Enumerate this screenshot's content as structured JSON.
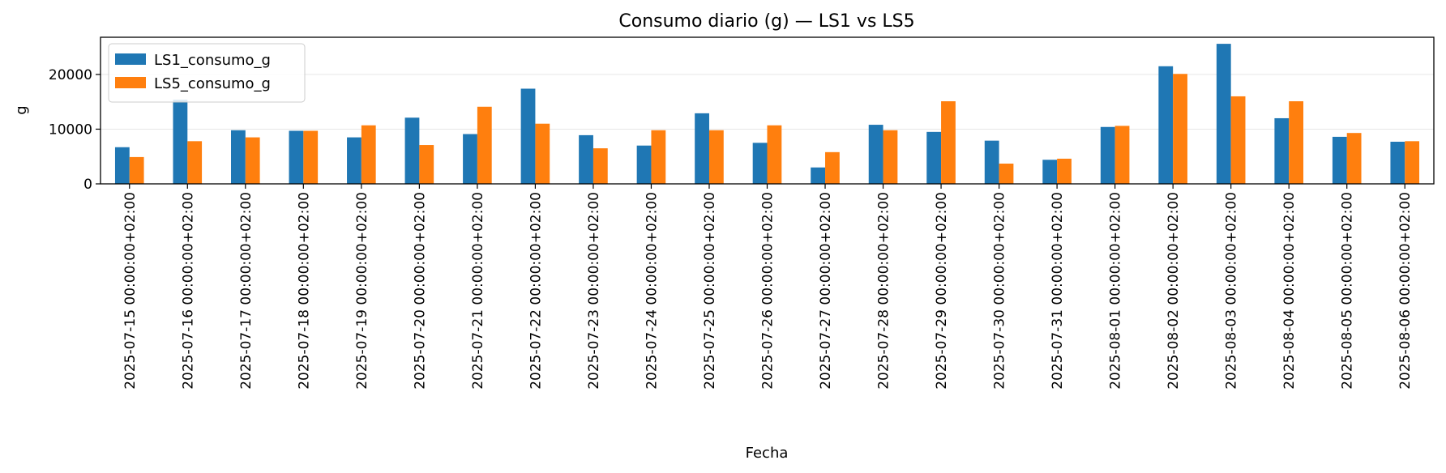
{
  "chart_data": {
    "type": "bar",
    "title": "Consumo diario (g) — LS1 vs LS5",
    "xlabel": "Fecha",
    "ylabel": "g",
    "ylim": [
      0,
      26800
    ],
    "yticks": [
      0,
      10000,
      20000
    ],
    "grid": "y",
    "legend_position": "top-left",
    "categories": [
      "2025-07-15 00:00:00+02:00",
      "2025-07-16 00:00:00+02:00",
      "2025-07-17 00:00:00+02:00",
      "2025-07-18 00:00:00+02:00",
      "2025-07-19 00:00:00+02:00",
      "2025-07-20 00:00:00+02:00",
      "2025-07-21 00:00:00+02:00",
      "2025-07-22 00:00:00+02:00",
      "2025-07-23 00:00:00+02:00",
      "2025-07-24 00:00:00+02:00",
      "2025-07-25 00:00:00+02:00",
      "2025-07-26 00:00:00+02:00",
      "2025-07-27 00:00:00+02:00",
      "2025-07-28 00:00:00+02:00",
      "2025-07-29 00:00:00+02:00",
      "2025-07-30 00:00:00+02:00",
      "2025-07-31 00:00:00+02:00",
      "2025-08-01 00:00:00+02:00",
      "2025-08-02 00:00:00+02:00",
      "2025-08-03 00:00:00+02:00",
      "2025-08-04 00:00:00+02:00",
      "2025-08-05 00:00:00+02:00",
      "2025-08-06 00:00:00+02:00"
    ],
    "series": [
      {
        "name": "LS1_consumo_g",
        "color": "#1f77b4",
        "values": [
          6700,
          15400,
          9800,
          9700,
          8500,
          12100,
          9100,
          17400,
          8900,
          7000,
          12900,
          7500,
          3000,
          10800,
          9500,
          7900,
          4400,
          10400,
          21500,
          25600,
          12000,
          8600,
          7700
        ]
      },
      {
        "name": "LS5_consumo_g",
        "color": "#ff7f0e",
        "values": [
          4900,
          7800,
          8500,
          9700,
          10700,
          7100,
          14100,
          11000,
          6500,
          9800,
          9800,
          10700,
          5800,
          9800,
          15100,
          3700,
          4600,
          10600,
          20100,
          16000,
          15100,
          9300,
          7800
        ]
      }
    ]
  }
}
